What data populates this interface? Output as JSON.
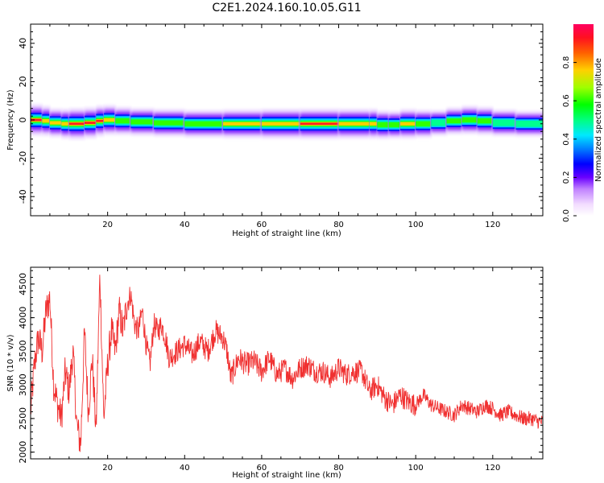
{
  "figure": {
    "title": "C2E1.2024.160.10.05.G11"
  },
  "chart_data": [
    {
      "type": "heatmap",
      "xlabel": "Height of straight line (km)",
      "ylabel": "Frequency (Hz)",
      "xlim": [
        0,
        133
      ],
      "ylim": [
        -50,
        50
      ],
      "xticks": [
        20,
        40,
        60,
        80,
        100,
        120
      ],
      "yticks": [
        -40,
        -20,
        0,
        20,
        40
      ],
      "colorbar": {
        "label": "Normalized spectral amplitude",
        "range": [
          0,
          1
        ],
        "ticks": [
          0.0,
          0.2,
          0.4,
          0.6,
          0.8
        ]
      },
      "band": [
        [
          0,
          0,
          1.0
        ],
        [
          3,
          0,
          0.95
        ],
        [
          5,
          -1,
          0.8
        ],
        [
          8,
          -2,
          0.8
        ],
        [
          10,
          -2,
          0.95
        ],
        [
          14,
          -2,
          1.0
        ],
        [
          17,
          -1,
          0.9
        ],
        [
          19,
          0,
          0.95
        ],
        [
          22,
          0,
          0.8
        ],
        [
          26,
          -1,
          0.7
        ],
        [
          32,
          -1,
          0.75
        ],
        [
          40,
          -2,
          0.7
        ],
        [
          50,
          -2,
          0.75
        ],
        [
          60,
          -2,
          0.85
        ],
        [
          70,
          -2,
          0.9
        ],
        [
          80,
          -2,
          0.9
        ],
        [
          88,
          -2,
          0.85
        ],
        [
          90,
          -2,
          0.9
        ],
        [
          93,
          -3,
          0.65
        ],
        [
          96,
          -2,
          0.8
        ],
        [
          100,
          -2,
          0.9
        ],
        [
          104,
          -2,
          0.6
        ],
        [
          108,
          -1,
          0.6
        ],
        [
          112,
          0,
          0.75
        ],
        [
          116,
          0,
          0.8
        ],
        [
          120,
          -1,
          0.7
        ],
        [
          126,
          -2,
          0.6
        ],
        [
          133,
          -2,
          0.6
        ]
      ]
    },
    {
      "type": "line",
      "xlabel": "Height of straight line (km)",
      "ylabel": "SNR (10 * v/v)",
      "xlim": [
        0,
        133
      ],
      "ylim": [
        1900,
        4750
      ],
      "xticks": [
        20,
        40,
        60,
        80,
        100,
        120
      ],
      "yticks": [
        2000,
        2500,
        3000,
        3500,
        4000,
        4500
      ],
      "color": "#f03030",
      "series": [
        {
          "x": [
            0,
            1,
            2,
            3,
            4,
            5,
            6,
            7,
            8,
            9,
            10,
            11,
            12,
            13,
            14,
            15,
            16,
            17,
            18,
            19,
            20,
            21,
            22,
            23,
            24,
            25,
            26,
            27,
            28,
            29,
            30,
            31,
            32,
            33,
            34,
            35,
            36,
            38,
            40,
            42,
            44,
            46,
            48,
            50,
            51,
            52,
            54,
            56,
            58,
            60,
            62,
            64,
            66,
            68,
            70,
            72,
            74,
            76,
            78,
            80,
            82,
            84,
            86,
            88,
            90,
            92,
            94,
            96,
            98,
            100,
            102,
            104,
            106,
            108,
            110,
            112,
            114,
            116,
            118,
            120,
            122,
            124,
            126,
            128,
            130,
            132,
            133
          ],
          "y": [
            2600,
            3300,
            3700,
            3500,
            4100,
            4300,
            3000,
            2700,
            2500,
            3200,
            2900,
            3500,
            2400,
            2100,
            3800,
            2600,
            3400,
            2300,
            4650,
            2500,
            3300,
            3800,
            3500,
            4100,
            3800,
            4200,
            4350,
            3900,
            3800,
            4100,
            3600,
            3300,
            3900,
            3800,
            3900,
            3700,
            3400,
            3500,
            3600,
            3450,
            3650,
            3500,
            3800,
            3700,
            3500,
            3100,
            3400,
            3300,
            3350,
            3200,
            3400,
            3150,
            3250,
            3100,
            3250,
            3300,
            3200,
            3200,
            3100,
            3250,
            3150,
            3200,
            3200,
            2900,
            3000,
            2800,
            2700,
            2850,
            2750,
            2700,
            2850,
            2700,
            2650,
            2600,
            2550,
            2700,
            2650,
            2600,
            2700,
            2650,
            2550,
            2600,
            2550,
            2500,
            2500,
            2450,
            2450
          ]
        }
      ]
    }
  ]
}
